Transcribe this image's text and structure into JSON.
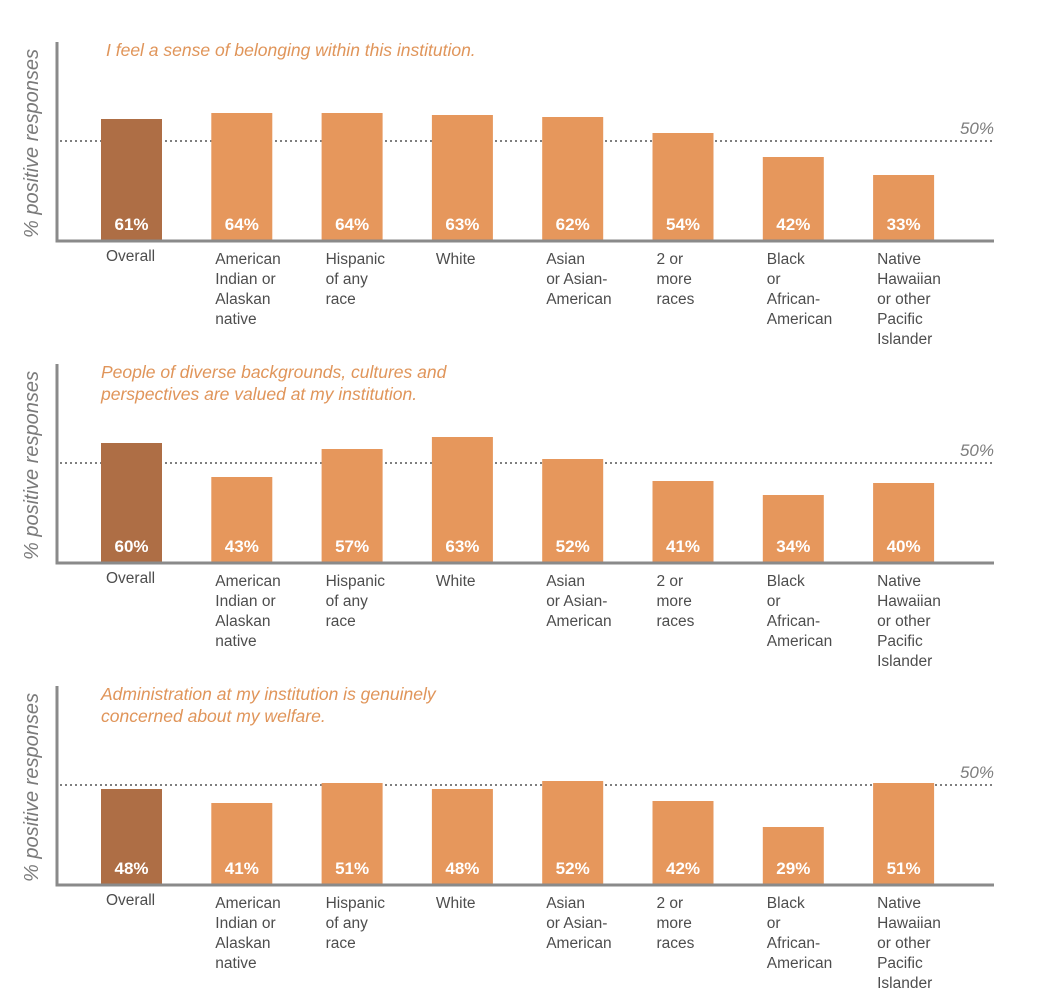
{
  "chart_data": [
    {
      "type": "bar",
      "title_lines": [
        "I feel a sense of belonging within this institution."
      ],
      "ylabel": "% positive responses",
      "reference_line": {
        "value": 50,
        "label": "50%"
      },
      "categories": [
        "Overall",
        "American Indian or Alaskan native",
        "Hispanic of any race",
        "White",
        "Asian or Asian-American",
        "2 or more races",
        "Black or African-American",
        "Native Hawaiian or other Pacific Islander"
      ],
      "category_lines": [
        [
          "Overall"
        ],
        [
          "American",
          "Indian or",
          "Alaskan",
          "native"
        ],
        [
          "Hispanic",
          "of any",
          "race"
        ],
        [
          "White"
        ],
        [
          "Asian",
          "or Asian-",
          "American"
        ],
        [
          "2 or",
          "more",
          "races"
        ],
        [
          "Black",
          "or",
          "African-",
          "American"
        ],
        [
          "Native",
          "Hawaiian",
          "or other",
          "Pacific",
          "Islander"
        ]
      ],
      "values": [
        61,
        64,
        64,
        63,
        62,
        54,
        42,
        33
      ],
      "value_labels": [
        "61%",
        "64%",
        "64%",
        "63%",
        "62%",
        "54%",
        "42%",
        "33%"
      ],
      "highlight_index": 0,
      "colors": {
        "highlight": "#ae6e45",
        "bar": "#e6975c",
        "axis": "#8a8a8a",
        "reference": "#7f7f7f"
      }
    },
    {
      "type": "bar",
      "title_lines": [
        "People of diverse backgrounds, cultures and",
        "perspectives are valued at my institution."
      ],
      "ylabel": "% positive responses",
      "reference_line": {
        "value": 50,
        "label": "50%"
      },
      "categories": [
        "Overall",
        "American Indian or Alaskan native",
        "Hispanic of any race",
        "White",
        "Asian or Asian-American",
        "2 or more races",
        "Black or African-American",
        "Native Hawaiian or other Pacific Islander"
      ],
      "category_lines": [
        [
          "Overall"
        ],
        [
          "American",
          "Indian or",
          "Alaskan",
          "native"
        ],
        [
          "Hispanic",
          "of any",
          "race"
        ],
        [
          "White"
        ],
        [
          "Asian",
          "or Asian-",
          "American"
        ],
        [
          "2 or",
          "more",
          "races"
        ],
        [
          "Black",
          "or",
          "African-",
          "American"
        ],
        [
          "Native",
          "Hawaiian",
          "or other",
          "Pacific",
          "Islander"
        ]
      ],
      "values": [
        60,
        43,
        57,
        63,
        52,
        41,
        34,
        40
      ],
      "value_labels": [
        "60%",
        "43%",
        "57%",
        "63%",
        "52%",
        "41%",
        "34%",
        "40%"
      ],
      "highlight_index": 0,
      "colors": {
        "highlight": "#ae6e45",
        "bar": "#e6975c",
        "axis": "#8a8a8a",
        "reference": "#7f7f7f"
      }
    },
    {
      "type": "bar",
      "title_lines": [
        "Administration at my institution is genuinely",
        "concerned about my welfare."
      ],
      "ylabel": "% positive responses",
      "reference_line": {
        "value": 50,
        "label": "50%"
      },
      "categories": [
        "Overall",
        "American Indian or Alaskan native",
        "Hispanic of any race",
        "White",
        "Asian or Asian-American",
        "2 or more races",
        "Black or African-American",
        "Native Hawaiian or other Pacific Islander"
      ],
      "category_lines": [
        [
          "Overall"
        ],
        [
          "American",
          "Indian or",
          "Alaskan",
          "native"
        ],
        [
          "Hispanic",
          "of any",
          "race"
        ],
        [
          "White"
        ],
        [
          "Asian",
          "or Asian-",
          "American"
        ],
        [
          "2 or",
          "more",
          "races"
        ],
        [
          "Black",
          "or",
          "African-",
          "American"
        ],
        [
          "Native",
          "Hawaiian",
          "or other",
          "Pacific",
          "Islander"
        ]
      ],
      "values": [
        48,
        41,
        51,
        48,
        52,
        42,
        29,
        51
      ],
      "value_labels": [
        "48%",
        "41%",
        "51%",
        "48%",
        "52%",
        "42%",
        "29%",
        "51%"
      ],
      "highlight_index": 0,
      "colors": {
        "highlight": "#ae6e45",
        "bar": "#e6975c",
        "axis": "#8a8a8a",
        "reference": "#7f7f7f"
      }
    }
  ]
}
